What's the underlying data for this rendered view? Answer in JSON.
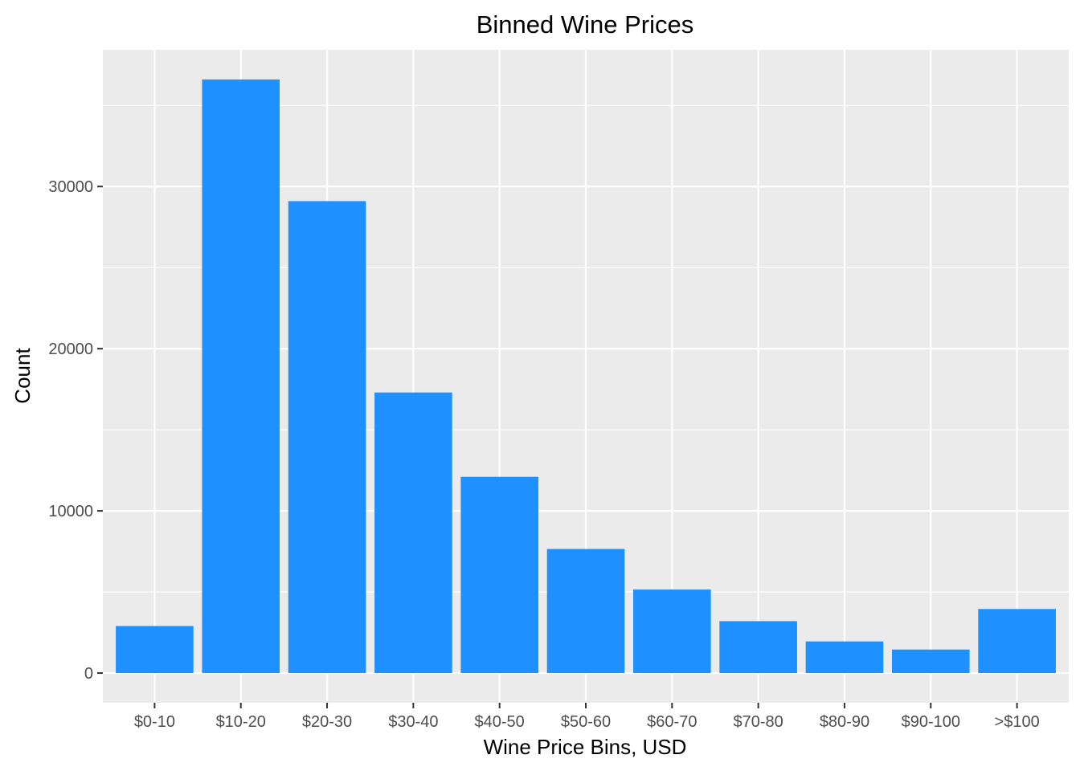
{
  "chart_data": {
    "type": "bar",
    "title": "Binned Wine Prices",
    "xlabel": "Wine Price Bins, USD",
    "ylabel": "Count",
    "categories": [
      "$0-10",
      "$10-20",
      "$20-30",
      "$30-40",
      "$40-50",
      "$50-60",
      "$60-70",
      "$70-80",
      "$80-90",
      "$90-100",
      ">$100"
    ],
    "values": [
      2900,
      36600,
      29100,
      17300,
      12100,
      7650,
      5150,
      3200,
      1950,
      1450,
      3950
    ],
    "yticks": [
      0,
      10000,
      20000,
      30000
    ],
    "ytick_labels": [
      "0",
      "10000",
      "20000",
      "30000"
    ],
    "ylim": [
      -1830,
      38430
    ],
    "grid": true,
    "legend": "none",
    "colors": {
      "bar": "#1E90FF",
      "panel_background": "#EBEBEB",
      "grid": "#FFFFFF",
      "tick": "#333333"
    }
  }
}
